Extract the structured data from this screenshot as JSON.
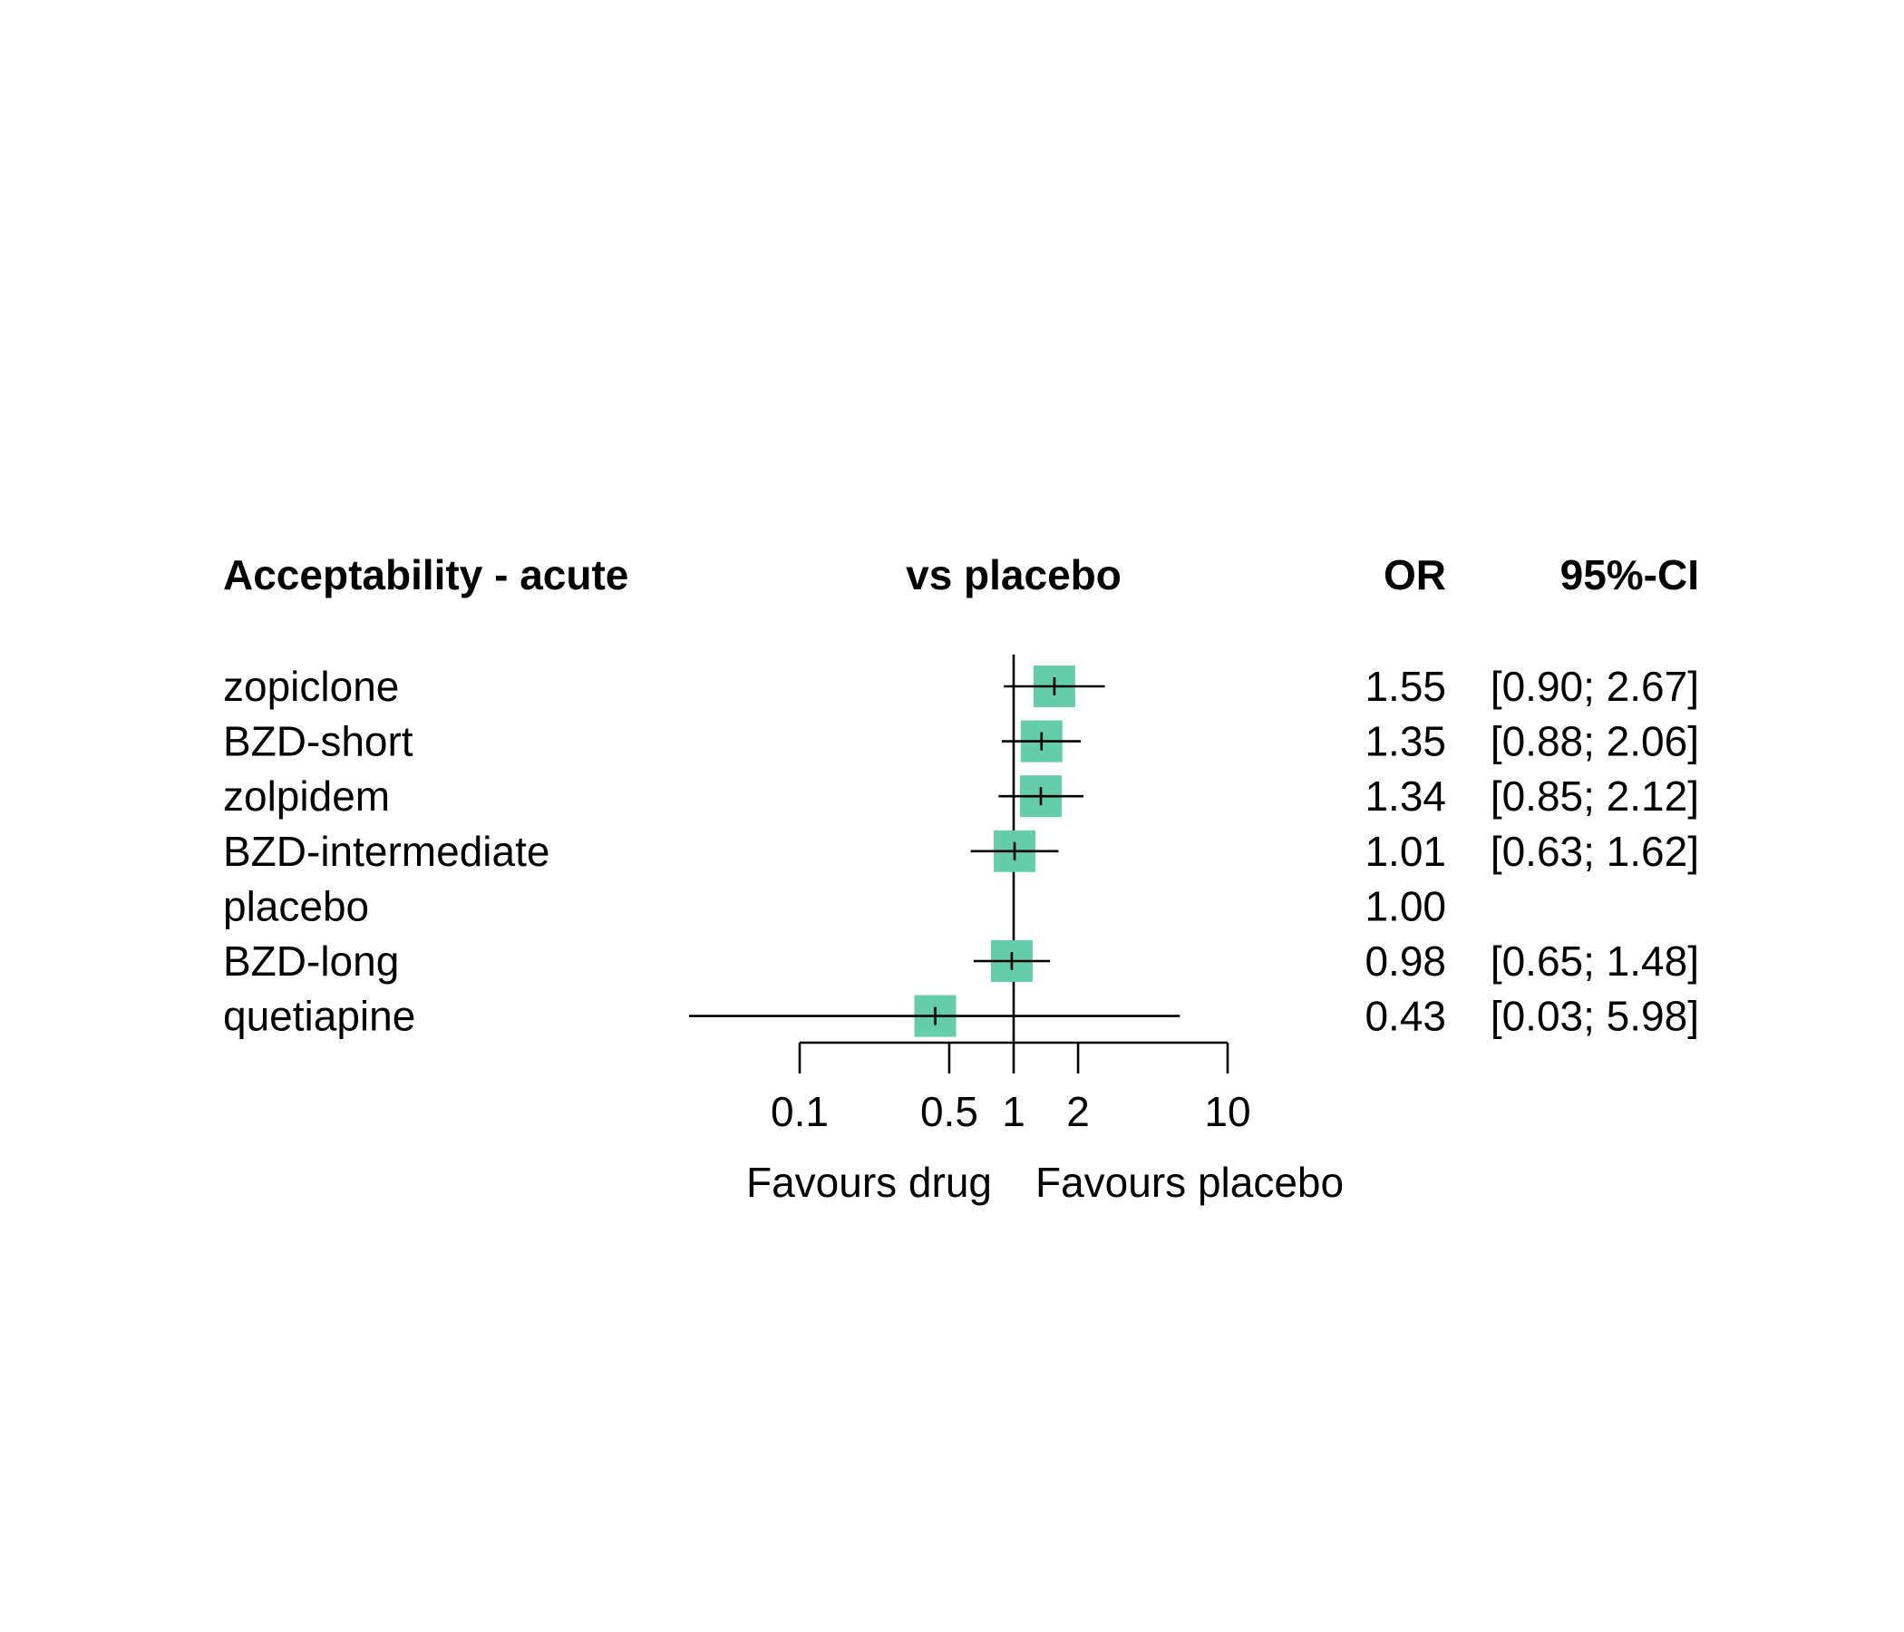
{
  "chart_data": {
    "type": "forest",
    "title": "Acceptability - acute",
    "comparison_label": "vs placebo",
    "columns": {
      "estimate": "OR",
      "ci": "95%-CI"
    },
    "x_scale": "log",
    "reference_value": 1,
    "x_ticks": [
      0.1,
      0.5,
      1,
      2,
      10
    ],
    "x_tick_labels": [
      "0.1",
      "0.5",
      "1",
      "2",
      "10"
    ],
    "favours_left": "Favours drug",
    "favours_right": "Favours placebo",
    "marker_color": "#66CDAA",
    "rows": [
      {
        "label": "zopiclone",
        "or": 1.55,
        "lower": 0.9,
        "upper": 2.67,
        "or_text": "1.55",
        "ci_text": "[0.90; 2.67]"
      },
      {
        "label": "BZD-short",
        "or": 1.35,
        "lower": 0.88,
        "upper": 2.06,
        "or_text": "1.35",
        "ci_text": "[0.88; 2.06]"
      },
      {
        "label": "zolpidem",
        "or": 1.34,
        "lower": 0.85,
        "upper": 2.12,
        "or_text": "1.34",
        "ci_text": "[0.85; 2.12]"
      },
      {
        "label": "BZD-intermediate",
        "or": 1.01,
        "lower": 0.63,
        "upper": 1.62,
        "or_text": "1.01",
        "ci_text": "[0.63; 1.62]"
      },
      {
        "label": "placebo",
        "or": 1.0,
        "lower": null,
        "upper": null,
        "or_text": "1.00",
        "ci_text": ""
      },
      {
        "label": "BZD-long",
        "or": 0.98,
        "lower": 0.65,
        "upper": 1.48,
        "or_text": "0.98",
        "ci_text": "[0.65; 1.48]"
      },
      {
        "label": "quetiapine",
        "or": 0.43,
        "lower": 0.03,
        "upper": 5.98,
        "or_text": "0.43",
        "ci_text": "[0.03; 5.98]"
      }
    ]
  }
}
